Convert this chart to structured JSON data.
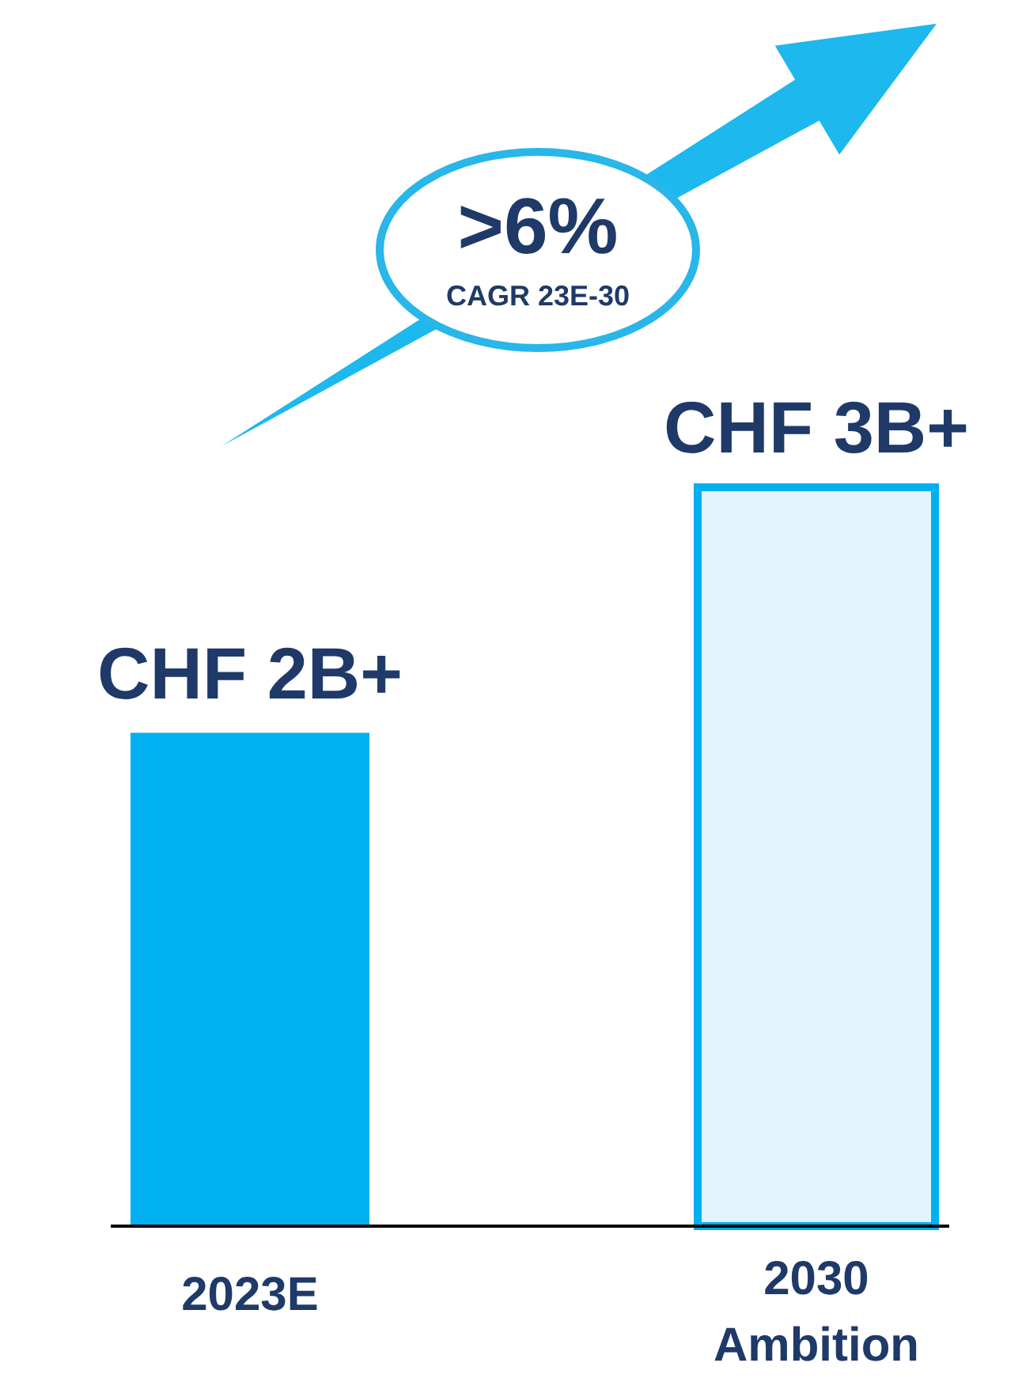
{
  "chart_data": {
    "type": "bar",
    "categories": [
      "2023E",
      "2030 Ambition"
    ],
    "values": [
      2000000000,
      3000000000
    ],
    "value_labels": [
      "CHF 2B+",
      "CHF 3B+"
    ],
    "colors": [
      "#00b0f0",
      "#e3f5fc"
    ],
    "annotations": [
      ">6%",
      "CAGR 23E-30"
    ]
  }
}
